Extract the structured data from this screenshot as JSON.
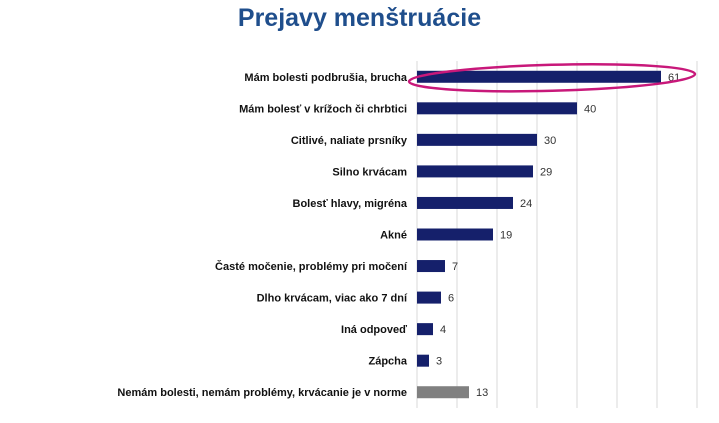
{
  "chart_data": {
    "type": "bar",
    "orientation": "horizontal",
    "title": "Prejavy menštruácie",
    "xlabel": "",
    "ylabel": "",
    "xlim": [
      0,
      70
    ],
    "grid": true,
    "categories": [
      "Mám bolesti podbrušia, brucha",
      "Mám bolesť v krížoch či chrbtici",
      "Citlivé, naliate prsníky",
      "Silno krvácam",
      "Bolesť hlavy, migréna",
      "Akné",
      "Časté močenie, problémy pri močení",
      "Dlho krvácam, viac ako 7 dní",
      "Iná odpoveď",
      "Zápcha",
      "Nemám bolesti, nemám problémy, krvácanie je v norme"
    ],
    "values": [
      61,
      40,
      30,
      29,
      24,
      19,
      7,
      6,
      4,
      3,
      13
    ],
    "value_labels": [
      "61",
      "40",
      "30",
      "29",
      "24",
      "19",
      "7",
      "6",
      "4",
      "3",
      "13"
    ],
    "bar_colors": [
      "#15206b",
      "#15206b",
      "#15206b",
      "#15206b",
      "#15206b",
      "#15206b",
      "#15206b",
      "#15206b",
      "#15206b",
      "#15206b",
      "#808080"
    ],
    "highlight_category_index": 0,
    "highlight_color": "#c8187a",
    "gridline_color": "#d9d9d9"
  }
}
